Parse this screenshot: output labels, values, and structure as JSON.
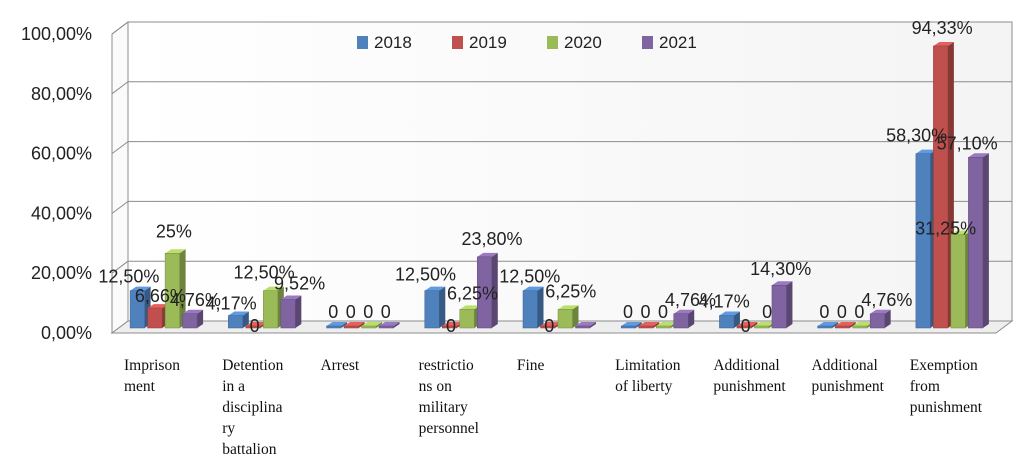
{
  "chart_data": {
    "type": "bar",
    "categories": [
      "Imprisonment",
      "Detention in a disciplinary battalion",
      "Arrest",
      "restrictions on military personnel",
      "Fine",
      "Limitation of liberty",
      "Additional punishment",
      "Additional punishment",
      "Exemption from punishment"
    ],
    "category_label_lines": [
      [
        "Imprison",
        "ment"
      ],
      [
        "Detention",
        "in a",
        "disciplina",
        "ry",
        "battalion"
      ],
      [
        "Arrest"
      ],
      [
        "restrictio",
        "ns on",
        "military",
        "personnel"
      ],
      [
        "Fine"
      ],
      [
        "Limitation",
        "of liberty"
      ],
      [
        "Additional",
        "punishment"
      ],
      [
        "Additional",
        "punishment"
      ],
      [
        "Exemption",
        "from",
        "punishment"
      ]
    ],
    "series": [
      {
        "name": "2018",
        "color": "#4f81bd",
        "values": [
          12.5,
          4.17,
          0,
          12.5,
          12.5,
          0,
          4.17,
          0,
          58.3
        ],
        "labels": [
          "12,50%",
          "4,17%",
          "0",
          "12,50%",
          "12,50%",
          "0",
          "4,17%",
          "0",
          "58,30%"
        ]
      },
      {
        "name": "2019",
        "color": "#c0504d",
        "values": [
          6.66,
          0,
          0,
          0,
          0,
          0,
          0,
          0,
          94.33
        ],
        "labels": [
          "6,66%",
          "0",
          "0",
          "0",
          "0",
          "0",
          "0",
          "0",
          "94,33%"
        ]
      },
      {
        "name": "2020",
        "color": "#9bbb59",
        "values": [
          25,
          12.5,
          0,
          6.25,
          6.25,
          0,
          0,
          0,
          31.25
        ],
        "labels": [
          "25%",
          "12,50%",
          "0",
          "6,25%",
          "6,25%",
          "0",
          "0",
          "0",
          "31,25%"
        ]
      },
      {
        "name": "2021",
        "color": "#8064a2",
        "values": [
          4.76,
          9.52,
          0,
          23.8,
          0,
          4.76,
          14.3,
          4.76,
          57.1
        ],
        "labels": [
          "4,76%",
          "9,52%",
          "0",
          "23,80%",
          "",
          "4,76%",
          "14,30%",
          "4,76%",
          "57,10%"
        ]
      }
    ],
    "y_ticks": [
      "0,00%",
      "20,00%",
      "40,00%",
      "60,00%",
      "80,00%",
      "100,00%"
    ],
    "ylim": [
      0,
      100
    ],
    "grid": true,
    "legend_position": "top",
    "title": "",
    "xlabel": "",
    "ylabel": ""
  }
}
